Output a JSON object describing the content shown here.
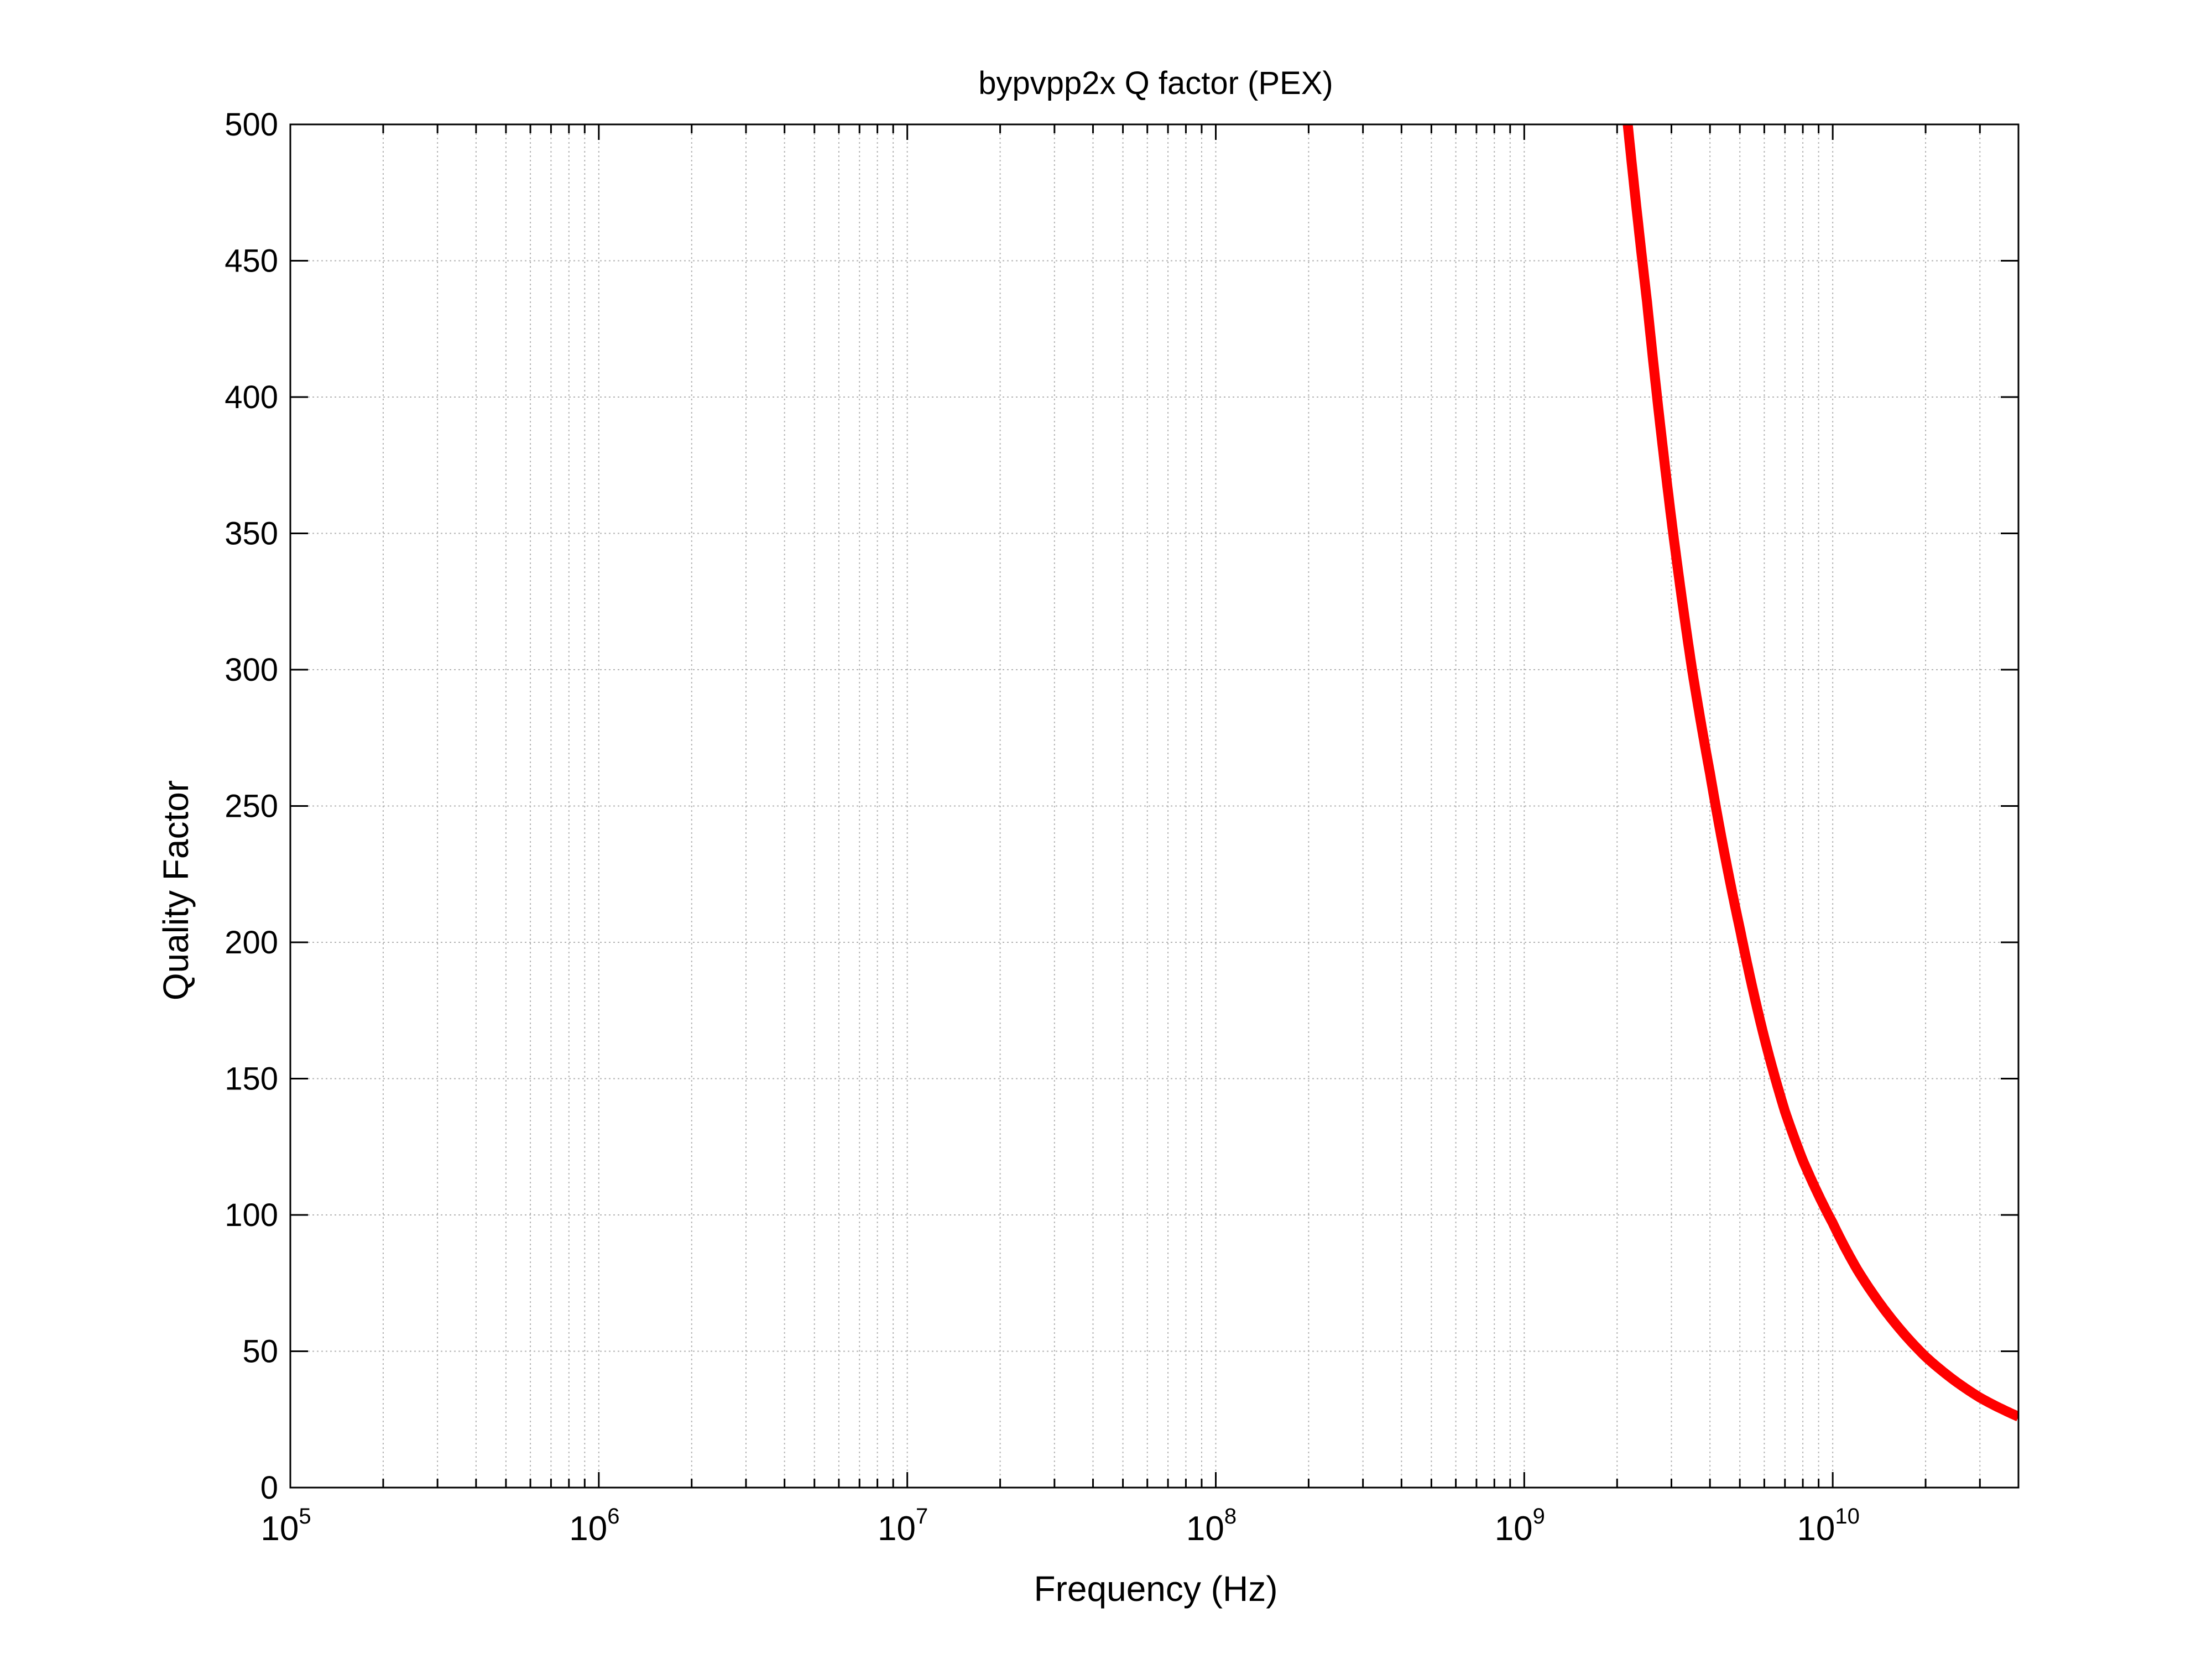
{
  "chart_data": {
    "type": "line",
    "title": "bypvpp2x Q factor  (PEX)",
    "xlabel": "Frequency (Hz)",
    "ylabel": "Quality Factor",
    "x_scale": "log",
    "xlim": [
      100000,
      40000000000
    ],
    "ylim": [
      0,
      500
    ],
    "grid": true,
    "y_ticks": [
      0,
      50,
      100,
      150,
      200,
      250,
      300,
      350,
      400,
      450,
      500
    ],
    "x_ticks": [
      {
        "value": 100000,
        "base": "10",
        "exp": "5"
      },
      {
        "value": 1000000,
        "base": "10",
        "exp": "6"
      },
      {
        "value": 10000000,
        "base": "10",
        "exp": "7"
      },
      {
        "value": 100000000,
        "base": "10",
        "exp": "8"
      },
      {
        "value": 1000000000,
        "base": "10",
        "exp": "9"
      },
      {
        "value": 10000000000,
        "base": "10",
        "exp": "10"
      }
    ],
    "series": [
      {
        "color": "#ff0000",
        "x": [
          2100000000,
          2500000000,
          3000000000,
          3500000000,
          4000000000,
          5000000000,
          6000000000,
          7000000000,
          8000000000,
          10000000000,
          12000000000,
          15000000000,
          20000000000,
          25000000000,
          30000000000,
          40000000000
        ],
        "y": [
          515,
          435,
          355,
          300,
          262,
          205,
          165,
          138,
          120,
          97,
          80,
          64,
          48,
          39,
          33,
          26
        ]
      }
    ]
  }
}
